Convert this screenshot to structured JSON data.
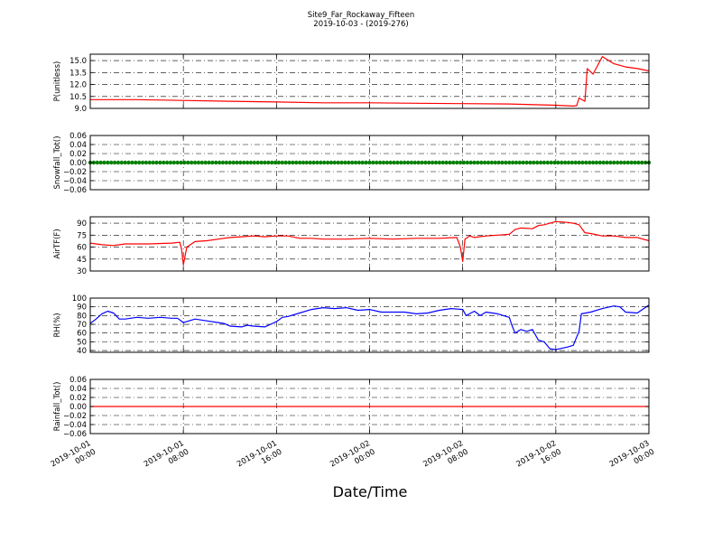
{
  "figure": {
    "title_line1": "Site9_Far_Rockaway_Fifteen",
    "title_line2": "2019-10-03 - (2019-276)",
    "xlabel": "Date/Time",
    "x_ticks": [
      {
        "t": 0,
        "line1": "2019-10-01",
        "line2": "00:00"
      },
      {
        "t": 8,
        "line1": "2019-10-01",
        "line2": "08:00"
      },
      {
        "t": 16,
        "line1": "2019-10-01",
        "line2": "16:00"
      },
      {
        "t": 24,
        "line1": "2019-10-02",
        "line2": "00:00"
      },
      {
        "t": 32,
        "line1": "2019-10-02",
        "line2": "08:00"
      },
      {
        "t": 40,
        "line1": "2019-10-02",
        "line2": "16:00"
      },
      {
        "t": 48,
        "line1": "2019-10-03",
        "line2": "00:00"
      }
    ]
  },
  "chart_data": [
    {
      "type": "line",
      "ylabel": "P(unitless)",
      "ylim": [
        9.0,
        15.8
      ],
      "yticks": [
        9.0,
        10.5,
        12.0,
        13.5,
        15.0
      ],
      "ytick_labels": [
        "9.0",
        "10.5",
        "12.0",
        "13.5",
        "15.0"
      ],
      "grid": true,
      "color": "#ff0000",
      "x": [
        0,
        4,
        8,
        12,
        16,
        20,
        24,
        28,
        32,
        36,
        40,
        41.5,
        41.8,
        42.0,
        42.5,
        42.7,
        43.2,
        44.0,
        45.0,
        46.0,
        47.0,
        48.0
      ],
      "y": [
        10.1,
        10.1,
        10.0,
        9.9,
        9.8,
        9.7,
        9.7,
        9.65,
        9.6,
        9.55,
        9.4,
        9.3,
        9.35,
        10.3,
        9.9,
        14.0,
        13.3,
        15.5,
        14.6,
        14.2,
        14.0,
        13.7
      ]
    },
    {
      "type": "scatter",
      "ylabel": "Snowfall_Tot()",
      "ylim": [
        -0.06,
        0.06
      ],
      "yticks": [
        -0.06,
        -0.04,
        -0.02,
        0.0,
        0.02,
        0.04,
        0.06
      ],
      "ytick_labels": [
        "−0.06",
        "−0.04",
        "−0.02",
        "0.00",
        "0.02",
        "0.04",
        "0.06"
      ],
      "grid": true,
      "color": "#008000",
      "x_range": [
        0,
        48
      ],
      "constant_value": 0.0
    },
    {
      "type": "line",
      "ylabel": "AirTF(F)",
      "ylim": [
        30,
        98
      ],
      "yticks": [
        30,
        45,
        60,
        75,
        90
      ],
      "ytick_labels": [
        "30",
        "45",
        "60",
        "75",
        "90"
      ],
      "grid": true,
      "color": "#ff0000",
      "x": [
        0,
        1,
        2,
        3,
        5,
        7,
        7.7,
        7.85,
        8.0,
        8.3,
        9,
        10,
        11,
        12,
        13,
        14,
        15,
        16,
        17,
        18,
        19,
        20,
        22,
        24,
        26,
        28,
        30,
        31.5,
        31.8,
        32.0,
        32.2,
        32.6,
        33,
        34,
        35,
        36,
        36.5,
        37,
        38,
        38.5,
        39,
        40,
        41,
        41.5,
        42,
        42.5,
        43,
        44,
        45,
        46,
        47,
        48
      ],
      "y": [
        65,
        63,
        62,
        64,
        64,
        65,
        66,
        57,
        38,
        60,
        67,
        68,
        70,
        72,
        73,
        74,
        73,
        74,
        74,
        71,
        71,
        70,
        70,
        71,
        70,
        71,
        71,
        72,
        60,
        42,
        70,
        74,
        72,
        74,
        75,
        76,
        82,
        84,
        83,
        87,
        88,
        92,
        91,
        90,
        88,
        78,
        77,
        74,
        74,
        72,
        72,
        68
      ]
    },
    {
      "type": "line",
      "ylabel": "RH(%)",
      "ylim": [
        38,
        100
      ],
      "yticks": [
        40,
        50,
        60,
        70,
        80,
        90,
        100
      ],
      "ytick_labels": [
        "40",
        "50",
        "60",
        "70",
        "80",
        "90",
        "100"
      ],
      "grid": true,
      "color": "#0000ff",
      "x": [
        0,
        0.5,
        1,
        1.5,
        2,
        2.5,
        3,
        4,
        5,
        6,
        7,
        7.5,
        8,
        9,
        10,
        11,
        11.5,
        12,
        13,
        13.5,
        14,
        15,
        15.5,
        16,
        16.5,
        17,
        18,
        19,
        20,
        21,
        22,
        23,
        24,
        25,
        26,
        27,
        28,
        29,
        30,
        31,
        32,
        32.3,
        33,
        33.5,
        34,
        35,
        36,
        36.2,
        36.5,
        37,
        37.5,
        38,
        38.5,
        39,
        39.5,
        40,
        41,
        41.5,
        42,
        42.2,
        43,
        44,
        45,
        45.5,
        46,
        47,
        48
      ],
      "y": [
        71,
        76,
        82,
        85,
        83,
        76,
        76,
        78,
        77,
        78,
        77,
        77,
        72,
        76,
        74,
        72,
        71,
        68,
        67,
        69,
        68,
        67,
        70,
        73,
        78,
        79,
        83,
        87,
        89,
        88,
        89,
        86,
        87,
        84,
        84,
        84,
        82,
        83,
        86,
        88,
        87,
        80,
        85,
        80,
        84,
        82,
        78,
        70,
        60,
        64,
        62,
        64,
        52,
        50,
        42,
        41,
        44,
        46,
        62,
        82,
        84,
        88,
        91,
        90,
        84,
        83,
        92
      ]
    },
    {
      "type": "line",
      "ylabel": "Rainfall_Tot()",
      "ylim": [
        -0.06,
        0.06
      ],
      "yticks": [
        -0.06,
        -0.04,
        -0.02,
        0.0,
        0.02,
        0.04,
        0.06
      ],
      "ytick_labels": [
        "−0.06",
        "−0.04",
        "−0.02",
        "0.00",
        "0.02",
        "0.04",
        "0.06"
      ],
      "grid": true,
      "color": "#ff0000",
      "x": [
        0,
        48
      ],
      "y": [
        0.0,
        0.0
      ]
    }
  ]
}
